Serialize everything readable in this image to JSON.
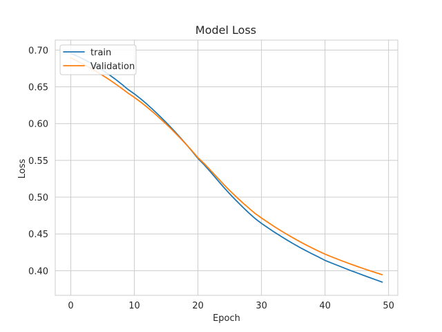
{
  "chart_data": {
    "type": "line",
    "title": "Model Loss",
    "xlabel": "Epoch",
    "ylabel": "Loss",
    "xlim": [
      -2.45,
      51.45
    ],
    "ylim": [
      0.3665,
      0.7135
    ],
    "xticks": [
      0,
      10,
      20,
      30,
      40,
      50
    ],
    "yticks": [
      0.4,
      0.45,
      0.5,
      0.55,
      0.6,
      0.65,
      0.7
    ],
    "ytick_labels": [
      "0.40",
      "0.45",
      "0.50",
      "0.55",
      "0.60",
      "0.65",
      "0.70"
    ],
    "grid": true,
    "legend_position": "upper-left",
    "x": [
      0,
      1,
      2,
      3,
      4,
      5,
      6,
      7,
      8,
      9,
      10,
      11,
      12,
      13,
      14,
      15,
      16,
      17,
      18,
      19,
      20,
      21,
      22,
      23,
      24,
      25,
      26,
      27,
      28,
      29,
      30,
      31,
      32,
      33,
      34,
      35,
      36,
      37,
      38,
      39,
      40,
      41,
      42,
      43,
      44,
      45,
      46,
      47,
      48,
      49
    ],
    "series": [
      {
        "name": "train",
        "color": "#1f77b4",
        "values": [
          0.6955,
          0.6918,
          0.6876,
          0.683,
          0.678,
          0.6726,
          0.6667,
          0.6604,
          0.6536,
          0.6464,
          0.6404,
          0.6336,
          0.6263,
          0.6184,
          0.6101,
          0.6016,
          0.5926,
          0.5832,
          0.5734,
          0.5632,
          0.5526,
          0.5439,
          0.5341,
          0.524,
          0.514,
          0.5045,
          0.4955,
          0.4869,
          0.4786,
          0.4709,
          0.4643,
          0.4584,
          0.4526,
          0.4471,
          0.4418,
          0.4367,
          0.4318,
          0.4272,
          0.4227,
          0.4185,
          0.414,
          0.4105,
          0.4071,
          0.4037,
          0.4003,
          0.3971,
          0.3939,
          0.3907,
          0.3876,
          0.3845
        ]
      },
      {
        "name": "Validation",
        "color": "#ff7f0e",
        "values": [
          0.6893,
          0.6851,
          0.6806,
          0.6759,
          0.6709,
          0.6656,
          0.66,
          0.6541,
          0.6479,
          0.6414,
          0.6356,
          0.6292,
          0.6224,
          0.6151,
          0.6073,
          0.5994,
          0.591,
          0.5822,
          0.5731,
          0.5636,
          0.5537,
          0.5455,
          0.5364,
          0.5271,
          0.5178,
          0.509,
          0.5007,
          0.4927,
          0.4851,
          0.4778,
          0.4716,
          0.4658,
          0.4601,
          0.4547,
          0.4495,
          0.4445,
          0.4397,
          0.4351,
          0.4307,
          0.4265,
          0.4225,
          0.419,
          0.4156,
          0.4123,
          0.4091,
          0.406,
          0.403,
          0.4001,
          0.3973,
          0.3946
        ]
      }
    ]
  }
}
